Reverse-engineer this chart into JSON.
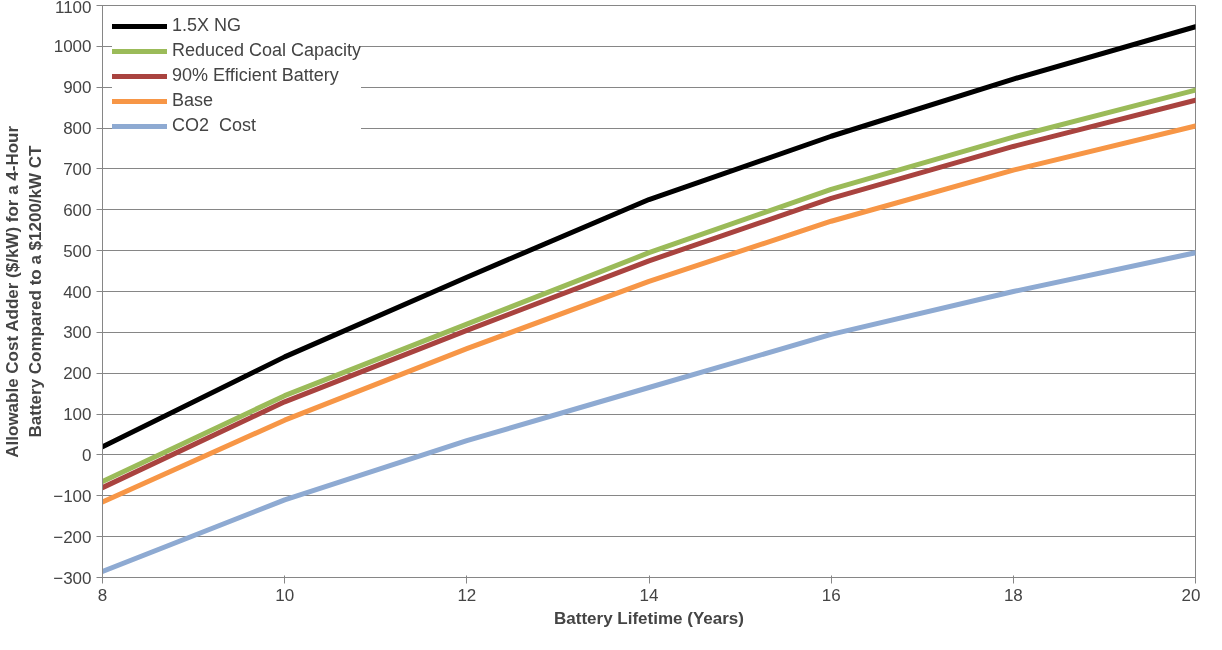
{
  "chart_data": {
    "type": "line",
    "xlabel": "Battery Lifetime (Years)",
    "ylabel": "Allowable Cost Adder ($/kW) for a 4-Hour Battery Compared to a $1200/kW CT",
    "x": [
      8,
      10,
      12,
      14,
      16,
      18,
      20
    ],
    "series": [
      {
        "name": "1.5X NG",
        "color": "#000000",
        "values": [
          20,
          240,
          435,
          625,
          780,
          920,
          1048
        ]
      },
      {
        "name": "Reduced Coal Capacity",
        "color": "#9bbb59",
        "values": [
          -65,
          145,
          320,
          495,
          650,
          778,
          893
        ]
      },
      {
        "name": "90% Efficient Battery",
        "color": "#a9433f",
        "values": [
          -80,
          130,
          305,
          475,
          628,
          755,
          868
        ]
      },
      {
        "name": "Base",
        "color": "#f79646",
        "values": [
          -115,
          85,
          260,
          425,
          572,
          697,
          805
        ]
      },
      {
        "name": "CO2  Cost",
        "color": "#8eaad2",
        "values": [
          -285,
          -110,
          35,
          165,
          295,
          400,
          495
        ]
      }
    ],
    "xlim": [
      8,
      20
    ],
    "xticks": [
      8,
      10,
      12,
      14,
      16,
      18,
      20
    ],
    "ylim": [
      -300,
      1100
    ],
    "yticks": [
      -300,
      -200,
      -100,
      0,
      100,
      200,
      300,
      400,
      500,
      600,
      700,
      800,
      900,
      1000,
      1100
    ],
    "grid": "y",
    "legend": "top left",
    "marker": "none",
    "line_style": "solid"
  }
}
